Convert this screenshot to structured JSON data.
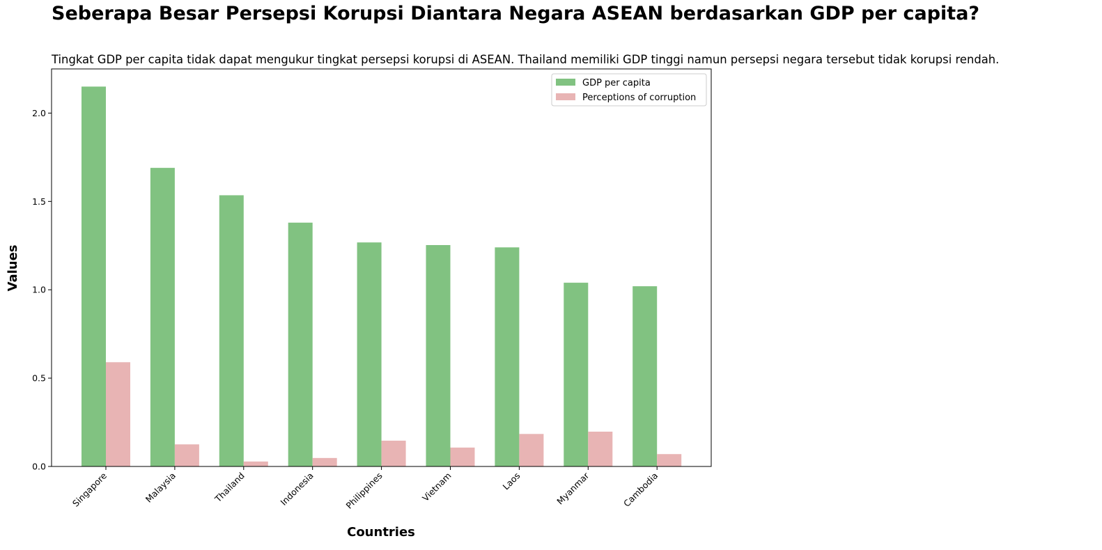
{
  "chart_data": {
    "type": "bar",
    "title": "Seberapa Besar Persepsi Korupsi Diantara Negara ASEAN berdasarkan GDP per capita?",
    "subtitle": "Tingkat GDP per capita tidak dapat mengukur tingkat persepsi korupsi di ASEAN. Thailand memiliki GDP tinggi namun persepsi negara tersebut tidak korupsi rendah.",
    "xlabel": "Countries",
    "ylabel": "Values",
    "categories": [
      "Singapore",
      "Malaysia",
      "Thailand",
      "Indonesia",
      "Philippines",
      "Vietnam",
      "Laos",
      "Myanmar",
      "Cambodia"
    ],
    "series": [
      {
        "name": "GDP per capita",
        "color": "#81c281",
        "values": [
          2.15,
          1.69,
          1.535,
          1.38,
          1.268,
          1.253,
          1.24,
          1.04,
          1.02
        ]
      },
      {
        "name": "Perceptions of corruption",
        "color": "#e8b4b4",
        "values": [
          0.59,
          0.125,
          0.028,
          0.048,
          0.146,
          0.107,
          0.184,
          0.197,
          0.07
        ]
      }
    ],
    "yticks": [
      "0.0",
      "0.5",
      "1.0",
      "1.5",
      "2.0"
    ],
    "ylim": [
      0,
      2.25
    ],
    "grid": false,
    "legend_position": "top-right"
  }
}
